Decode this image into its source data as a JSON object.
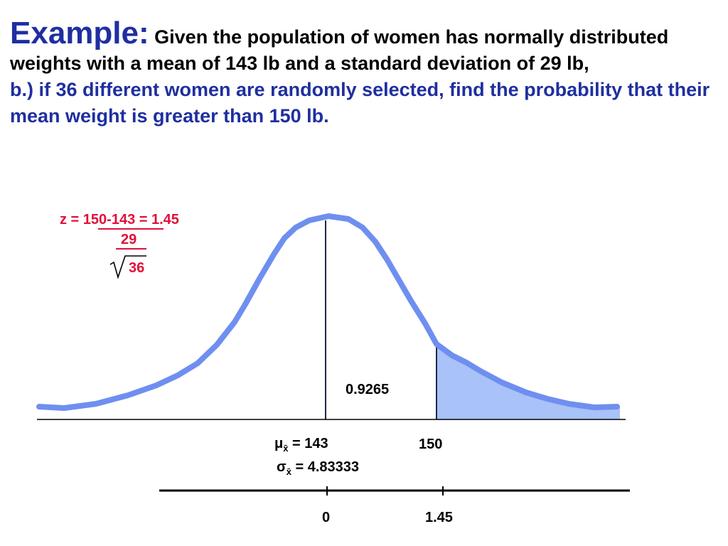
{
  "heading": {
    "example_label": "Example:",
    "given_text": "Given the population of women has normally distributed weights with a mean of 143 lb and a standard deviation of 29 lb,",
    "question_text": "b.)  if 36 different women are randomly selected, find the probability that their mean weight is greater than 150 lb."
  },
  "formula": {
    "z_prefix": "z = ",
    "numerator": "150-143",
    "z_result": " = 1.45",
    "sigma": "29",
    "n": "36"
  },
  "figure": {
    "area_label": "0.9265",
    "mu_symbol": "μ",
    "mu_sub": "x̄",
    "mu_value": " = 143",
    "sigma_symbol": "σ",
    "sigma_sub": "x̄",
    "sigma_value": " = 4.83333",
    "x_label": "150",
    "z_mean_label": "0",
    "z_value_label": "1.45"
  },
  "colors": {
    "heading_blue": "#1f2fa0",
    "formula_red": "#e0103a",
    "curve_blue": "#6f8ff0",
    "shade_blue": "#a9c2f7"
  }
}
